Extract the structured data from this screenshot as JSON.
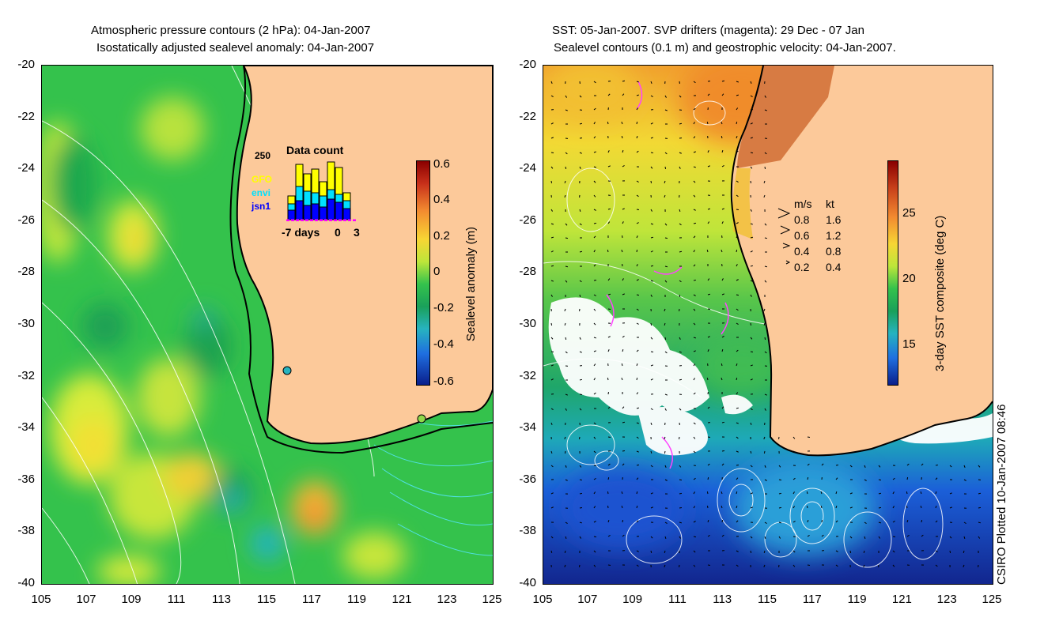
{
  "left_panel": {
    "title_line1": "Atmospheric pressure contours (2 hPa): 04-Jan-2007",
    "title_line2": "Isostatically adjusted sealevel anomaly: 04-Jan-2007",
    "colorbar_label": "Sealevel anomaly (m)",
    "colorbar_ticks": [
      "0.6",
      "0.4",
      "0.2",
      "0",
      "-0.2",
      "-0.4",
      "-0.6"
    ],
    "inset": {
      "title": "Data count",
      "ymax_label": "250",
      "legend": [
        {
          "name": "GFO",
          "color": "#ffff00"
        },
        {
          "name": "envi",
          "color": "#00e0ff"
        },
        {
          "name": "jsn1",
          "color": "#0000ff"
        }
      ],
      "x_left": "-7 days",
      "x_zero": "0",
      "x_right": "3"
    }
  },
  "right_panel": {
    "title_line1": "SST: 05-Jan-2007. SVP drifters (magenta): 29 Dec - 07 Jan",
    "title_line2": "Sealevel contours (0.1 m) and geostrophic velocity: 04-Jan-2007.",
    "colorbar_label": "3-day SST composite (deg C)",
    "colorbar_ticks": [
      "25",
      "20",
      "15"
    ],
    "velocity_legend": {
      "header_ms": "m/s",
      "header_kt": "kt",
      "rows": [
        {
          "ms": "0.8",
          "kt": "1.6"
        },
        {
          "ms": "0.6",
          "kt": "1.2"
        },
        {
          "ms": "0.4",
          "kt": "0.8"
        },
        {
          "ms": "0.2",
          "kt": "0.4"
        }
      ]
    }
  },
  "axes": {
    "y_ticks": [
      "-20",
      "-22",
      "-24",
      "-26",
      "-28",
      "-30",
      "-32",
      "-34",
      "-36",
      "-38",
      "-40"
    ],
    "x_ticks": [
      "105",
      "107",
      "109",
      "111",
      "113",
      "115",
      "117",
      "119",
      "121",
      "123",
      "125"
    ]
  },
  "watermark": "CSIRO Plotted 10-Jan-2007 08:46",
  "colors": {
    "land": "#fcc99a",
    "coast": "#000000",
    "ocean_anom": "#33c24a",
    "pressure_contour": "#ffffff",
    "sst_contour_cyan": "#4fe0e0"
  }
}
